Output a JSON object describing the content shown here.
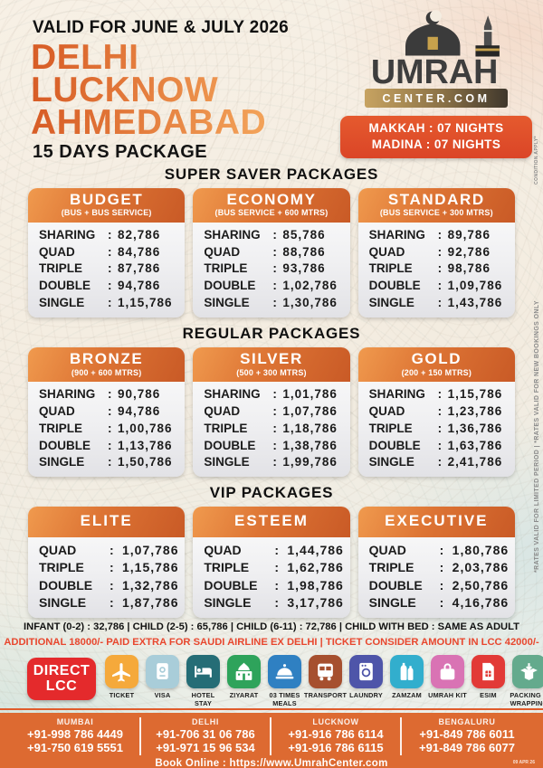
{
  "page": {
    "validity": "VALID FOR JUNE & JULY 2026",
    "cities": [
      "DELHI",
      "LUCKNOW",
      "AHMEDABAD"
    ],
    "duration": "15 DAYS PACKAGE"
  },
  "logo": {
    "brand": "UMRAH",
    "domain": "CENTER.COM"
  },
  "nights": {
    "line1": "MAKKAH : 07 NIGHTS",
    "line2": "MADINA : 07 NIGHTS"
  },
  "sections": [
    {
      "title": "SUPER SAVER PACKAGES",
      "cards": [
        {
          "name": "BUDGET",
          "subtitle": "(BUS + BUS SERVICE)",
          "rows": [
            [
              "SHARING",
              "82,786"
            ],
            [
              "QUAD",
              "84,786"
            ],
            [
              "TRIPLE",
              "87,786"
            ],
            [
              "DOUBLE",
              "94,786"
            ],
            [
              "SINGLE",
              "1,15,786"
            ]
          ]
        },
        {
          "name": "ECONOMY",
          "subtitle": "(BUS SERVICE + 600 MTRS)",
          "rows": [
            [
              "SHARING",
              "85,786"
            ],
            [
              "QUAD",
              "88,786"
            ],
            [
              "TRIPLE",
              "93,786"
            ],
            [
              "DOUBLE",
              "1,02,786"
            ],
            [
              "SINGLE",
              "1,30,786"
            ]
          ]
        },
        {
          "name": "STANDARD",
          "subtitle": "(BUS SERVICE + 300 MTRS)",
          "rows": [
            [
              "SHARING",
              "89,786"
            ],
            [
              "QUAD",
              "92,786"
            ],
            [
              "TRIPLE",
              "98,786"
            ],
            [
              "DOUBLE",
              "1,09,786"
            ],
            [
              "SINGLE",
              "1,43,786"
            ]
          ]
        }
      ]
    },
    {
      "title": "REGULAR PACKAGES",
      "cards": [
        {
          "name": "BRONZE",
          "subtitle": "(900 + 600 MTRS)",
          "rows": [
            [
              "SHARING",
              "90,786"
            ],
            [
              "QUAD",
              "94,786"
            ],
            [
              "TRIPLE",
              "1,00,786"
            ],
            [
              "DOUBLE",
              "1,13,786"
            ],
            [
              "SINGLE",
              "1,50,786"
            ]
          ]
        },
        {
          "name": "SILVER",
          "subtitle": "(500 + 300 MTRS)",
          "rows": [
            [
              "SHARING",
              "1,01,786"
            ],
            [
              "QUAD",
              "1,07,786"
            ],
            [
              "TRIPLE",
              "1,18,786"
            ],
            [
              "DOUBLE",
              "1,38,786"
            ],
            [
              "SINGLE",
              "1,99,786"
            ]
          ]
        },
        {
          "name": "GOLD",
          "subtitle": "(200 + 150 MTRS)",
          "rows": [
            [
              "SHARING",
              "1,15,786"
            ],
            [
              "QUAD",
              "1,23,786"
            ],
            [
              "TRIPLE",
              "1,36,786"
            ],
            [
              "DOUBLE",
              "1,63,786"
            ],
            [
              "SINGLE",
              "2,41,786"
            ]
          ]
        }
      ]
    },
    {
      "title": "VIP PACKAGES",
      "vip": true,
      "cards": [
        {
          "name": "ELITE",
          "rows": [
            [
              "QUAD",
              "1,07,786"
            ],
            [
              "TRIPLE",
              "1,15,786"
            ],
            [
              "DOUBLE",
              "1,32,786"
            ],
            [
              "SINGLE",
              "1,87,786"
            ]
          ]
        },
        {
          "name": "ESTEEM",
          "rows": [
            [
              "QUAD",
              "1,44,786"
            ],
            [
              "TRIPLE",
              "1,62,786"
            ],
            [
              "DOUBLE",
              "1,98,786"
            ],
            [
              "SINGLE",
              "3,17,786"
            ]
          ]
        },
        {
          "name": "EXECUTIVE",
          "rows": [
            [
              "QUAD",
              "1,80,786"
            ],
            [
              "TRIPLE",
              "2,03,786"
            ],
            [
              "DOUBLE",
              "2,50,786"
            ],
            [
              "SINGLE",
              "4,16,786"
            ]
          ]
        }
      ]
    }
  ],
  "child_info": "INFANT (0-2) : 32,786 | CHILD (2-5) : 65,786 | CHILD (6-11) : 72,786 | CHILD WITH BED : SAME AS ADULT",
  "airline_note": "ADDITIONAL 18000/- PAID EXTRA FOR SAUDI AIRLINE EX DELHI | TICKET CONSIDER AMOUNT IN LCC 42000/-",
  "amenities": {
    "badge": {
      "line1": "DIRECT",
      "line2": "LCC",
      "color": "#e42a2c"
    },
    "items": [
      {
        "label": "TICKET",
        "icon": "plane-icon",
        "color": "#f5a93b"
      },
      {
        "label": "VISA",
        "icon": "passport-icon",
        "color": "#a9cdd9"
      },
      {
        "label": "HOTEL STAY",
        "icon": "bed-icon",
        "color": "#256d76"
      },
      {
        "label": "ZIYARAT",
        "icon": "mosque-icon",
        "color": "#2ea35b"
      },
      {
        "label": "03 TIMES MEALS",
        "icon": "meals-icon",
        "color": "#2f80c2"
      },
      {
        "label": "TRANSPORT",
        "icon": "bus-icon",
        "color": "#a6502f"
      },
      {
        "label": "LAUNDRY",
        "icon": "laundry-icon",
        "color": "#4e55a9"
      },
      {
        "label": "ZAMZAM",
        "icon": "zamzam-icon",
        "color": "#32aecd"
      },
      {
        "label": "UMRAH KIT",
        "icon": "bag-icon",
        "color": "#d973b4"
      },
      {
        "label": "ESIM",
        "icon": "sim-icon",
        "color": "#e23a37"
      },
      {
        "label": "PACKING & WRAPPING",
        "icon": "box-icon",
        "color": "#64aa8d"
      }
    ]
  },
  "side_notes": {
    "condition": "CONDITION APPLY*",
    "rates": "*RATES VALID FOR LIMITED PERIOD | *RATES VALID FOR NEW BOOKINGS ONLY"
  },
  "footer": {
    "contacts": [
      {
        "city": "MUMBAI",
        "phones": [
          "+91-998 786 4449",
          "+91-750 619 5551"
        ]
      },
      {
        "city": "DELHI",
        "phones": [
          "+91-706 31 06 786",
          "+91-971 15 96 534"
        ]
      },
      {
        "city": "LUCKNOW",
        "phones": [
          "+91-916 786 6114",
          "+91-916 786 6115"
        ]
      },
      {
        "city": "BENGALURU",
        "phones": [
          "+91-849 786 6011",
          "+91-849 786 6077"
        ]
      }
    ],
    "book_online": "Book Online : https://www.UmrahCenter.com",
    "stamp": "09 APR 26"
  },
  "colors": {
    "accent_orange": "#e0662e",
    "card_header_dark": "#c95a26",
    "card_header_light": "#f09a4e",
    "note_red": "#e8472e",
    "footer_orange": "#dd6a31",
    "gold": "#c8a24c"
  }
}
